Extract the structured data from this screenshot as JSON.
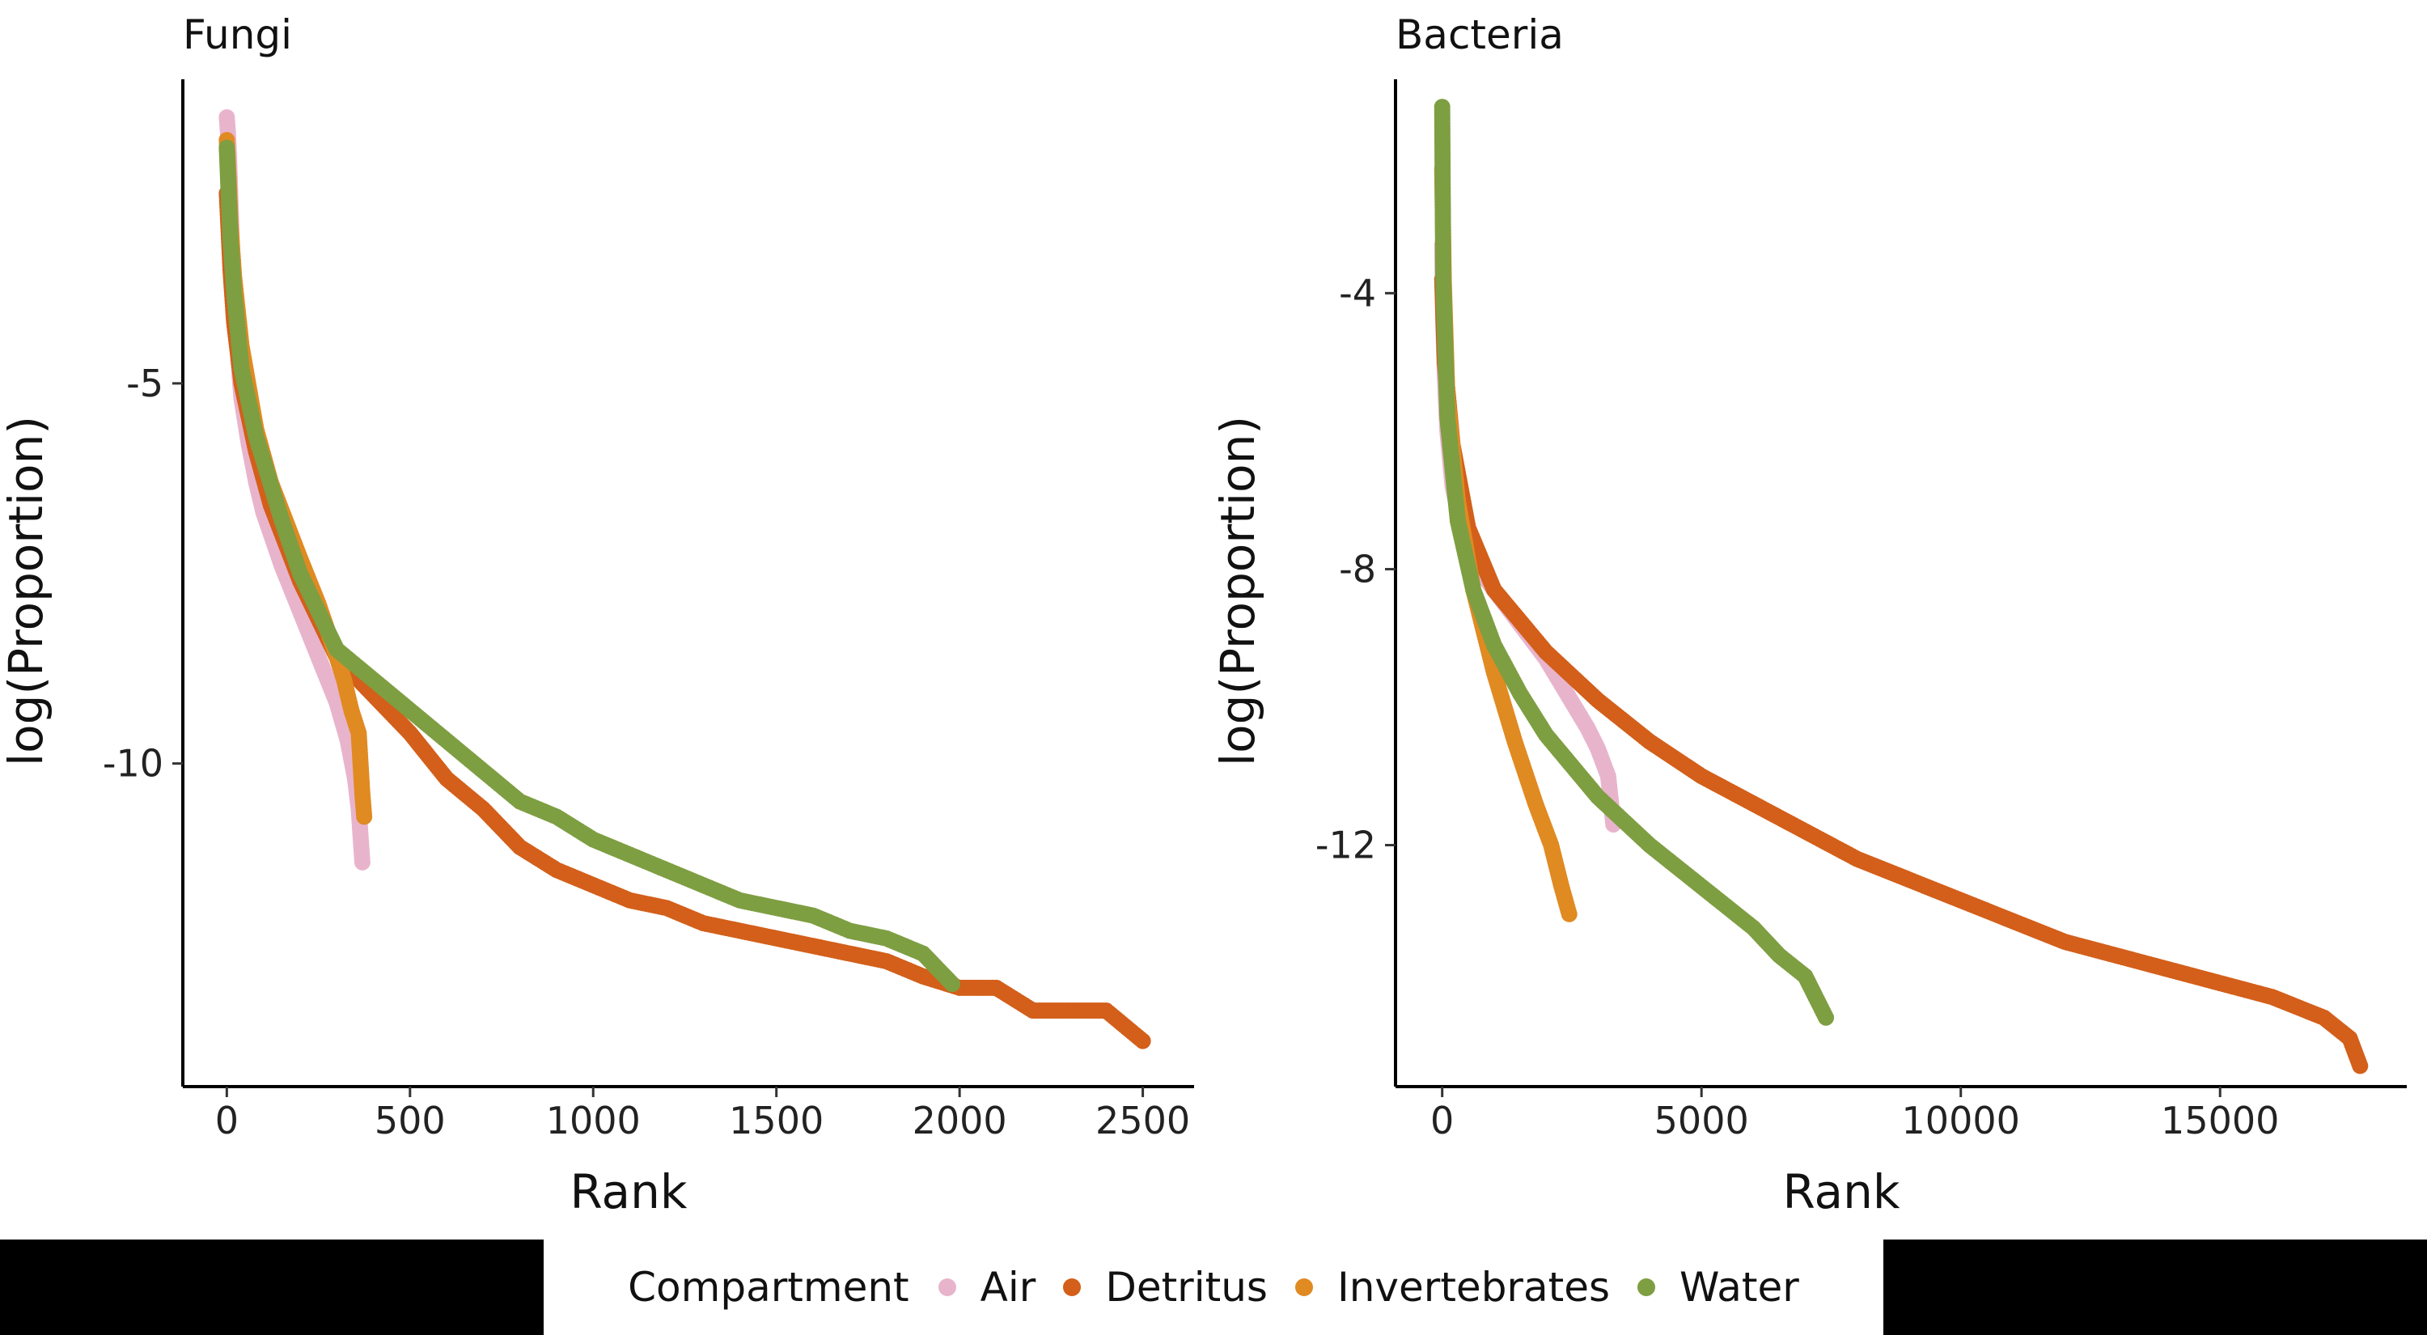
{
  "legend": {
    "title": "Compartment",
    "items": [
      {
        "label": "Air",
        "color": "#E8B4CC"
      },
      {
        "label": "Detritus",
        "color": "#D35F1A"
      },
      {
        "label": "Invertebrates",
        "color": "#E08A22"
      },
      {
        "label": "Water",
        "color": "#7E9E42"
      }
    ]
  },
  "chart_data": [
    {
      "type": "scatter",
      "title": "Fungi",
      "xlabel": "Rank",
      "ylabel": "log(Proportion)",
      "xlim": [
        -120,
        2640
      ],
      "ylim": [
        -14.25,
        -1.0
      ],
      "xticks": [
        0,
        500,
        1000,
        1500,
        2000,
        2500
      ],
      "yticks": [
        -5,
        -10
      ],
      "grid": false,
      "legend": "bottom",
      "series": [
        {
          "name": "Air",
          "color": "#E8B4CC",
          "points": [
            [
              0,
              -1.5
            ],
            [
              3,
              -1.7
            ],
            [
              6,
              -2.0
            ],
            [
              10,
              -2.6
            ],
            [
              15,
              -3.3
            ],
            [
              20,
              -3.9
            ],
            [
              30,
              -4.6
            ],
            [
              40,
              -5.2
            ],
            [
              60,
              -5.8
            ],
            [
              80,
              -6.3
            ],
            [
              100,
              -6.7
            ],
            [
              150,
              -7.4
            ],
            [
              200,
              -8.0
            ],
            [
              250,
              -8.6
            ],
            [
              300,
              -9.2
            ],
            [
              330,
              -9.7
            ],
            [
              350,
              -10.2
            ],
            [
              360,
              -10.6
            ],
            [
              370,
              -11.3
            ]
          ]
        },
        {
          "name": "Detritus",
          "color": "#D35F1A",
          "points": [
            [
              0,
              -2.5
            ],
            [
              5,
              -3.0
            ],
            [
              10,
              -3.5
            ],
            [
              20,
              -4.2
            ],
            [
              40,
              -5.0
            ],
            [
              80,
              -5.9
            ],
            [
              120,
              -6.6
            ],
            [
              200,
              -7.6
            ],
            [
              300,
              -8.6
            ],
            [
              400,
              -9.1
            ],
            [
              500,
              -9.6
            ],
            [
              600,
              -10.2
            ],
            [
              700,
              -10.6
            ],
            [
              800,
              -11.1
            ],
            [
              900,
              -11.4
            ],
            [
              1000,
              -11.6
            ],
            [
              1100,
              -11.8
            ],
            [
              1200,
              -11.9
            ],
            [
              1300,
              -12.1
            ],
            [
              1400,
              -12.2
            ],
            [
              1500,
              -12.3
            ],
            [
              1600,
              -12.4
            ],
            [
              1700,
              -12.5
            ],
            [
              1800,
              -12.6
            ],
            [
              1900,
              -12.8
            ],
            [
              2000,
              -12.95
            ],
            [
              2100,
              -12.95
            ],
            [
              2200,
              -13.25
            ],
            [
              2300,
              -13.25
            ],
            [
              2400,
              -13.25
            ],
            [
              2500,
              -13.65
            ]
          ]
        },
        {
          "name": "Invertebrates",
          "color": "#E08A22",
          "points": [
            [
              0,
              -1.8
            ],
            [
              5,
              -2.3
            ],
            [
              10,
              -2.9
            ],
            [
              20,
              -3.6
            ],
            [
              40,
              -4.5
            ],
            [
              80,
              -5.6
            ],
            [
              120,
              -6.3
            ],
            [
              200,
              -7.3
            ],
            [
              250,
              -7.9
            ],
            [
              300,
              -8.6
            ],
            [
              320,
              -8.9
            ],
            [
              340,
              -9.3
            ],
            [
              360,
              -9.6
            ],
            [
              370,
              -10.4
            ],
            [
              375,
              -10.7
            ]
          ]
        },
        {
          "name": "Water",
          "color": "#7E9E42",
          "points": [
            [
              0,
              -1.9
            ],
            [
              5,
              -2.5
            ],
            [
              10,
              -3.1
            ],
            [
              20,
              -3.8
            ],
            [
              40,
              -4.8
            ],
            [
              80,
              -5.7
            ],
            [
              150,
              -6.8
            ],
            [
              200,
              -7.5
            ],
            [
              300,
              -8.5
            ],
            [
              400,
              -8.9
            ],
            [
              500,
              -9.3
            ],
            [
              600,
              -9.7
            ],
            [
              700,
              -10.1
            ],
            [
              800,
              -10.5
            ],
            [
              900,
              -10.7
            ],
            [
              1000,
              -11.0
            ],
            [
              1100,
              -11.2
            ],
            [
              1200,
              -11.4
            ],
            [
              1300,
              -11.6
            ],
            [
              1400,
              -11.8
            ],
            [
              1500,
              -11.9
            ],
            [
              1600,
              -12.0
            ],
            [
              1700,
              -12.2
            ],
            [
              1800,
              -12.3
            ],
            [
              1900,
              -12.5
            ],
            [
              1980,
              -12.9
            ]
          ]
        }
      ]
    },
    {
      "type": "scatter",
      "title": "Bacteria",
      "xlabel": "Rank",
      "ylabel": "log(Proportion)",
      "xlim": [
        -900,
        18600
      ],
      "ylim": [
        -15.5,
        -0.9
      ],
      "xticks": [
        0,
        5000,
        10000,
        15000
      ],
      "yticks": [
        -4,
        -8,
        -12
      ],
      "grid": false,
      "legend": "bottom",
      "series": [
        {
          "name": "Air",
          "color": "#E8B4CC",
          "points": [
            [
              0,
              -3.3
            ],
            [
              20,
              -4.4
            ],
            [
              50,
              -5.2
            ],
            [
              100,
              -6.0
            ],
            [
              200,
              -6.8
            ],
            [
              400,
              -7.5
            ],
            [
              700,
              -8.0
            ],
            [
              1000,
              -8.3
            ],
            [
              1500,
              -8.8
            ],
            [
              2000,
              -9.3
            ],
            [
              2400,
              -9.8
            ],
            [
              2800,
              -10.3
            ],
            [
              3000,
              -10.6
            ],
            [
              3200,
              -11.0
            ],
            [
              3300,
              -11.7
            ]
          ]
        },
        {
          "name": "Detritus",
          "color": "#D35F1A",
          "points": [
            [
              0,
              -3.8
            ],
            [
              50,
              -5.0
            ],
            [
              200,
              -6.2
            ],
            [
              500,
              -7.4
            ],
            [
              1000,
              -8.3
            ],
            [
              2000,
              -9.2
            ],
            [
              3000,
              -9.9
            ],
            [
              4000,
              -10.5
            ],
            [
              5000,
              -11.0
            ],
            [
              6000,
              -11.4
            ],
            [
              7000,
              -11.8
            ],
            [
              8000,
              -12.2
            ],
            [
              9000,
              -12.5
            ],
            [
              10000,
              -12.8
            ],
            [
              11000,
              -13.1
            ],
            [
              12000,
              -13.4
            ],
            [
              13000,
              -13.6
            ],
            [
              14000,
              -13.8
            ],
            [
              15000,
              -14.0
            ],
            [
              16000,
              -14.2
            ],
            [
              17000,
              -14.5
            ],
            [
              17500,
              -14.8
            ],
            [
              17700,
              -15.2
            ]
          ]
        },
        {
          "name": "Invertebrates",
          "color": "#E08A22",
          "points": [
            [
              0,
              -2.2
            ],
            [
              30,
              -3.8
            ],
            [
              100,
              -5.5
            ],
            [
              300,
              -7.0
            ],
            [
              600,
              -8.3
            ],
            [
              1000,
              -9.5
            ],
            [
              1400,
              -10.5
            ],
            [
              1800,
              -11.4
            ],
            [
              2100,
              -12.0
            ],
            [
              2300,
              -12.6
            ],
            [
              2450,
              -13.0
            ]
          ]
        },
        {
          "name": "Water",
          "color": "#7E9E42",
          "points": [
            [
              0,
              -1.3
            ],
            [
              20,
              -3.8
            ],
            [
              100,
              -5.8
            ],
            [
              300,
              -7.3
            ],
            [
              600,
              -8.3
            ],
            [
              1000,
              -9.1
            ],
            [
              1500,
              -9.8
            ],
            [
              2000,
              -10.4
            ],
            [
              3000,
              -11.3
            ],
            [
              4000,
              -12.0
            ],
            [
              5000,
              -12.6
            ],
            [
              5500,
              -12.9
            ],
            [
              6000,
              -13.2
            ],
            [
              6500,
              -13.6
            ],
            [
              7000,
              -13.9
            ],
            [
              7200,
              -14.2
            ],
            [
              7400,
              -14.5
            ]
          ]
        }
      ]
    }
  ]
}
